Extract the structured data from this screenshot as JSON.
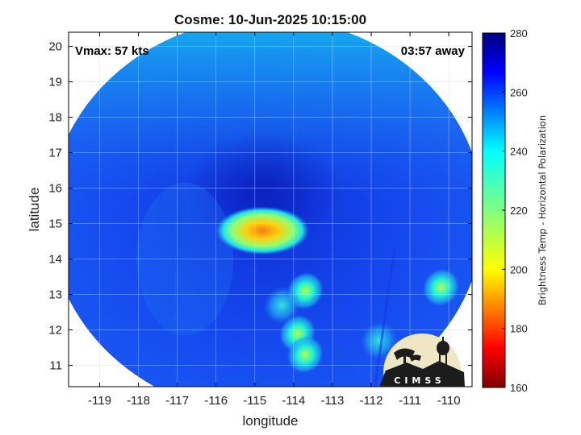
{
  "chart_data": {
    "type": "heatmap",
    "title": "Cosme: 10-Jun-2025 10:15:00",
    "xlabel": "longitude",
    "ylabel": "latitude",
    "xlim": [
      -119.8,
      -109.4
    ],
    "ylim": [
      10.4,
      20.4
    ],
    "xticks": [
      -119,
      -118,
      -117,
      -116,
      -115,
      -114,
      -113,
      -112,
      -111,
      -110
    ],
    "yticks": [
      11,
      12,
      13,
      14,
      15,
      16,
      17,
      18,
      19,
      20
    ],
    "grid": true,
    "annotations": {
      "left": "Vmax: 57 kts",
      "right": "03:57 away"
    },
    "colorbar": {
      "label": "Brightness Temp - Horizontal Polarization",
      "range": [
        160,
        280
      ],
      "ticks": [
        160,
        180,
        200,
        220,
        240,
        260,
        280
      ],
      "colormap": "jet"
    },
    "swath": {
      "center_lon": -114.7,
      "center_lat": 15.2,
      "radius_deg": 5.6
    },
    "features": [
      {
        "name": "storm core",
        "lon": -114.8,
        "lat": 14.8,
        "min_tb": 198
      },
      {
        "name": "rainband",
        "lon": -113.7,
        "lat": 13.1,
        "min_tb": 225
      },
      {
        "name": "rainband",
        "lon": -114.3,
        "lat": 12.7,
        "min_tb": 232
      },
      {
        "name": "rainband",
        "lon": -113.9,
        "lat": 11.9,
        "min_tb": 228
      },
      {
        "name": "rainband",
        "lon": -113.7,
        "lat": 11.3,
        "min_tb": 226
      },
      {
        "name": "rainband",
        "lon": -111.8,
        "lat": 11.7,
        "min_tb": 232
      },
      {
        "name": "rainband",
        "lon": -110.2,
        "lat": 13.2,
        "min_tb": 222
      }
    ]
  },
  "logo": {
    "text": "CIMSS"
  },
  "colors": {
    "axes": "#000000",
    "grid": "#d9d9d9",
    "background": "#ffffff"
  }
}
